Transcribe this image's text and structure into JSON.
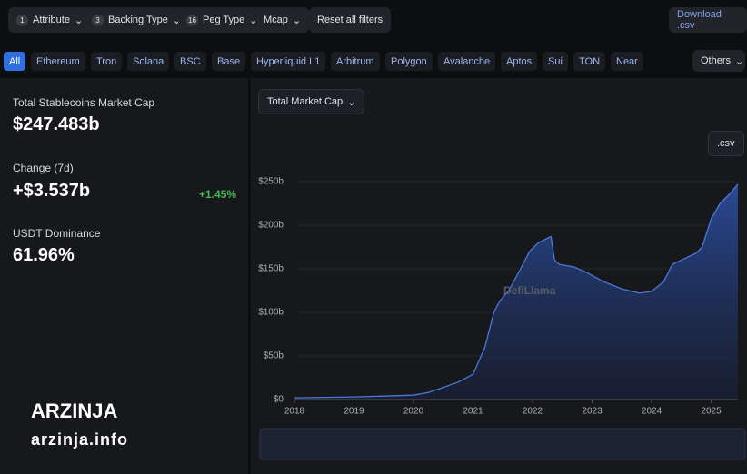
{
  "filters": [
    {
      "badge": "1",
      "label": "Attribute"
    },
    {
      "badge": "3",
      "label": "Backing Type"
    },
    {
      "badge": "16",
      "label": "Peg Type"
    },
    {
      "label": "Mcap"
    }
  ],
  "reset": "Reset all filters",
  "download": "Download .csv",
  "chains": [
    "All",
    "Ethereum",
    "Tron",
    "Solana",
    "BSC",
    "Base",
    "Hyperliquid L1",
    "Arbitrum",
    "Polygon",
    "Avalanche",
    "Aptos",
    "Sui",
    "TON",
    "Near"
  ],
  "others": "Others",
  "stats": [
    {
      "label": "Total Stablecoins Market Cap",
      "value": "$247.483b"
    },
    {
      "label": "Change (7d)",
      "value": "+$3.537b",
      "change": "+1.45%"
    },
    {
      "label": "USDT Dominance",
      "value": "61.96%"
    }
  ],
  "chart_selector": "Total Market Cap",
  "csv": ".csv",
  "watermark": "DefiLlama",
  "brand": {
    "name": "ARZINJA",
    "url": "arzinja.info"
  },
  "chart_data": {
    "type": "area",
    "color": "#4a78d8",
    "x": [
      2018.0,
      2019.0,
      2019.5,
      2020.0,
      2020.25,
      2020.5,
      2020.75,
      2021.0,
      2021.2,
      2021.35,
      2021.45,
      2021.6,
      2021.8,
      2021.95,
      2022.1,
      2022.31,
      2022.37,
      2022.45,
      2022.7,
      2022.9,
      2023.2,
      2023.5,
      2023.8,
      2024.0,
      2024.2,
      2024.35,
      2024.5,
      2024.75,
      2024.85,
      2025.0,
      2025.15,
      2025.3,
      2025.45
    ],
    "values": [
      2,
      3,
      4,
      5,
      8,
      14,
      20,
      29,
      60,
      100,
      113,
      125,
      150,
      170,
      180,
      187,
      160,
      155,
      152,
      146,
      135,
      127,
      122,
      124,
      135,
      155,
      160,
      168,
      175,
      207,
      225,
      235,
      247
    ],
    "xlim": [
      2018,
      2025.45
    ],
    "xticks": [
      2018,
      2019,
      2020,
      2021,
      2022,
      2023,
      2024,
      2025
    ],
    "ylim": [
      0,
      250
    ],
    "yticks": [
      {
        "value": 0,
        "label": "$0"
      },
      {
        "value": 50,
        "label": "$50b"
      },
      {
        "value": 100,
        "label": "$100b"
      },
      {
        "value": 150,
        "label": "$150b"
      },
      {
        "value": 200,
        "label": "$200b"
      },
      {
        "value": 250,
        "label": "$250b"
      }
    ]
  }
}
